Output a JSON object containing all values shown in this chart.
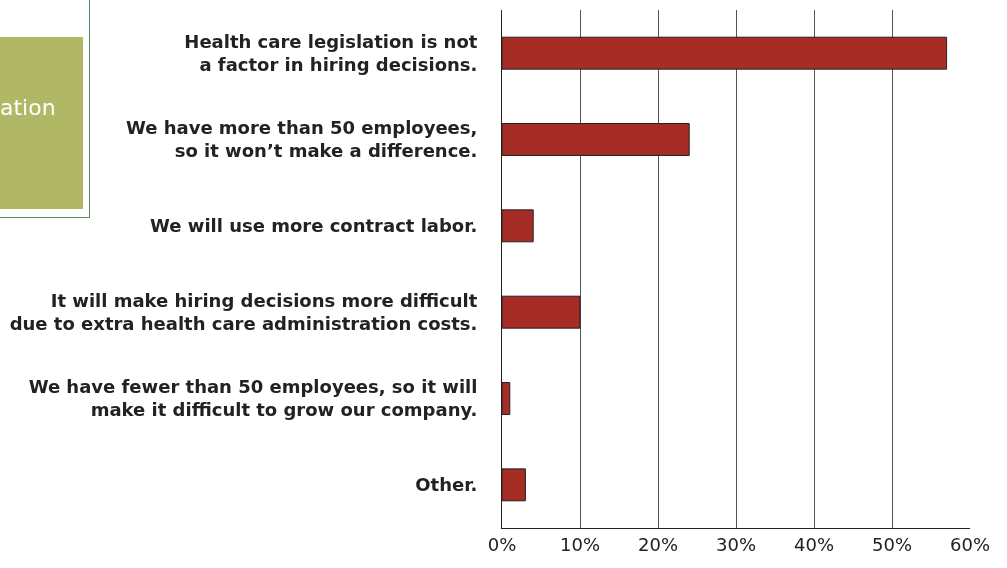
{
  "chart_data": {
    "type": "bar",
    "orientation": "horizontal",
    "categories": [
      "Health care legislation is not a factor in hiring decisions.",
      "We have more than 50 employees, so it won’t make a difference.",
      "We will use more contract labor.",
      "It will make hiring decisions more difficult due to extra health care administration costs.",
      "We have fewer than 50 employees, so it will make it difficult to grow our company.",
      "Other."
    ],
    "values": [
      57,
      24,
      4,
      10,
      1,
      3
    ],
    "color": "#a52d25",
    "xlim": [
      0,
      60
    ],
    "xticks": [
      {
        "value": 0,
        "label": "0%"
      },
      {
        "value": 10,
        "label": "10%"
      },
      {
        "value": 20,
        "label": "20%"
      },
      {
        "value": 30,
        "label": "30%"
      },
      {
        "value": 40,
        "label": "40%"
      },
      {
        "value": 50,
        "label": "50%"
      },
      {
        "value": 60,
        "label": "60%"
      }
    ],
    "grid": "x",
    "annotations": [
      "ation"
    ]
  }
}
